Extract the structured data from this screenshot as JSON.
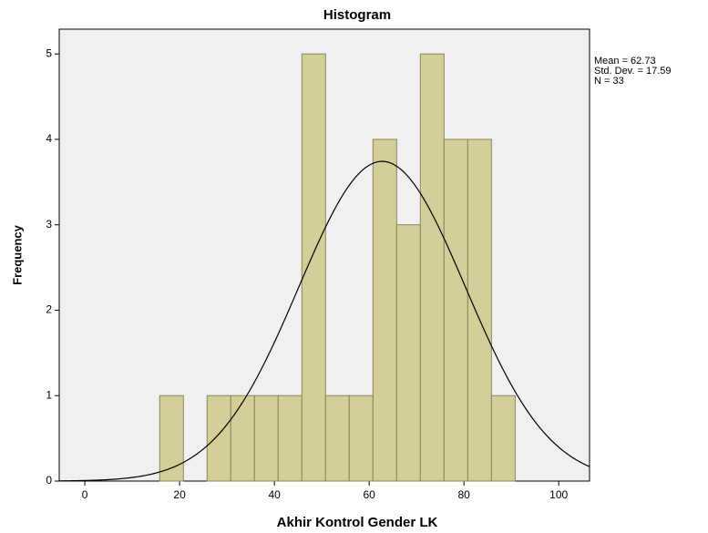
{
  "chart_data": {
    "type": "histogram",
    "title": "Histogram",
    "x_label": "Akhir Kontrol Gender LK",
    "y_label": "Frequency",
    "bins": [
      15.8,
      20.8,
      25.8,
      30.8,
      35.8,
      40.8,
      45.8,
      50.8,
      55.8,
      60.8,
      65.8,
      70.8,
      75.8,
      80.8,
      85.8,
      90.8
    ],
    "values": [
      1,
      0,
      1,
      1,
      1,
      1,
      5,
      1,
      1,
      4,
      3,
      5,
      4,
      4,
      1
    ],
    "color": "#d4cf98",
    "edge_color": "#8a8560",
    "curve_color": "#000000",
    "xlim": [
      -5.4,
      106.5
    ],
    "ylim": [
      0,
      5.29
    ],
    "xticks": [
      0,
      20,
      40,
      60,
      80,
      100
    ],
    "yticks": [
      0,
      1,
      2,
      3,
      4,
      5
    ],
    "stats": [
      {
        "value": 62.73,
        "label": "Mean = 62.73"
      },
      {
        "value": 17.59,
        "label": "Std. Dev. = 17.59"
      },
      {
        "value": 33,
        "label": "N = 33"
      }
    ]
  }
}
